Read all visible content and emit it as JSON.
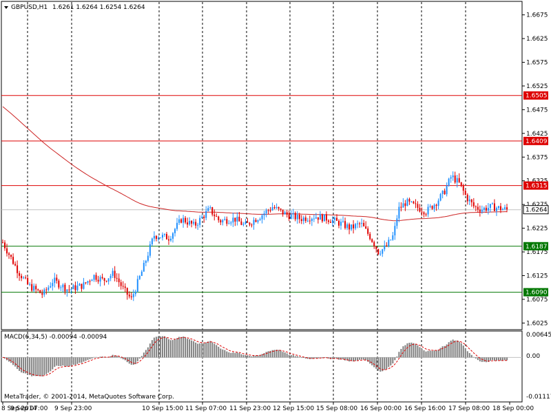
{
  "header": {
    "symbol": "GBPUSD,H1",
    "quote": "1.6261 1.6264 1.6254 1.6264"
  },
  "macd": {
    "label": "MACD(6,34,5) -0.00094 -0.00094",
    "axis_labels": [
      "0.00645",
      "0.00",
      "-0.01117"
    ],
    "axis_values": [
      0.00645,
      0.0,
      -0.01117
    ]
  },
  "copyright": "MetaTrader, © 2001-2014, MetaQuotes Software Corp.",
  "chart_data": {
    "type": "candlestick",
    "price_axis": {
      "tick_labels": [
        "1.6675",
        "1.6625",
        "1.6575",
        "1.6525",
        "1.6475",
        "1.6425",
        "1.6375",
        "1.6325",
        "1.6275",
        "1.6225",
        "1.6175",
        "1.6125",
        "1.6075",
        "1.6025"
      ],
      "range": [
        1.6011,
        1.6702
      ]
    },
    "time_axis": {
      "tick_labels": [
        "8 Sep 2014",
        "9 Sep 07:00",
        "9 Sep 23:00",
        "10 Sep 15:00",
        "11 Sep 07:00",
        "11 Sep 23:00",
        "12 Sep 15:00",
        "15 Sep 08:00",
        "16 Sep 00:00",
        "16 Sep 16:00",
        "17 Sep 08:00",
        "18 Sep 00:00"
      ]
    },
    "horizontal_levels": [
      {
        "label": "1.6505",
        "value": 1.6505,
        "color": "#dd0000"
      },
      {
        "label": "1.6409",
        "value": 1.6409,
        "color": "#dd0000"
      },
      {
        "label": "1.6315",
        "value": 1.6315,
        "color": "#dd0000"
      },
      {
        "label": "1.6187",
        "value": 1.6187,
        "color": "#007700"
      },
      {
        "label": "1.6090",
        "value": 1.609,
        "color": "#007700"
      }
    ],
    "current_price": {
      "label": "1.6264",
      "value": 1.6264
    },
    "bull_color": "#1e8fff",
    "bear_color": "#e00000",
    "ma_color": "#cc2222",
    "close_path": [
      [
        0,
        1.6195
      ],
      [
        0.03,
        1.6135
      ],
      [
        0.05,
        1.6105
      ],
      [
        0.08,
        1.6085
      ],
      [
        0.1,
        1.6115
      ],
      [
        0.13,
        1.6095
      ],
      [
        0.16,
        1.6105
      ],
      [
        0.18,
        1.6125
      ],
      [
        0.2,
        1.6115
      ],
      [
        0.22,
        1.613
      ],
      [
        0.24,
        1.6095
      ],
      [
        0.255,
        1.6075
      ],
      [
        0.28,
        1.6145
      ],
      [
        0.3,
        1.621
      ],
      [
        0.33,
        1.6205
      ],
      [
        0.355,
        1.6245
      ],
      [
        0.38,
        1.623
      ],
      [
        0.41,
        1.6265
      ],
      [
        0.43,
        1.624
      ],
      [
        0.46,
        1.6245
      ],
      [
        0.48,
        1.623
      ],
      [
        0.51,
        1.625
      ],
      [
        0.535,
        1.627
      ],
      [
        0.56,
        1.6255
      ],
      [
        0.59,
        1.6245
      ],
      [
        0.62,
        1.625
      ],
      [
        0.645,
        1.6245
      ],
      [
        0.67,
        1.6235
      ],
      [
        0.69,
        1.6225
      ],
      [
        0.71,
        1.6235
      ],
      [
        0.73,
        1.6205
      ],
      [
        0.745,
        1.6175
      ],
      [
        0.76,
        1.6185
      ],
      [
        0.775,
        1.621
      ],
      [
        0.785,
        1.6265
      ],
      [
        0.8,
        1.628
      ],
      [
        0.82,
        1.627
      ],
      [
        0.84,
        1.626
      ],
      [
        0.86,
        1.628
      ],
      [
        0.875,
        1.63
      ],
      [
        0.89,
        1.6335
      ],
      [
        0.905,
        1.632
      ],
      [
        0.92,
        1.629
      ],
      [
        0.935,
        1.627
      ],
      [
        0.95,
        1.6265
      ],
      [
        0.97,
        1.627
      ],
      [
        1,
        1.6264
      ]
    ]
  }
}
